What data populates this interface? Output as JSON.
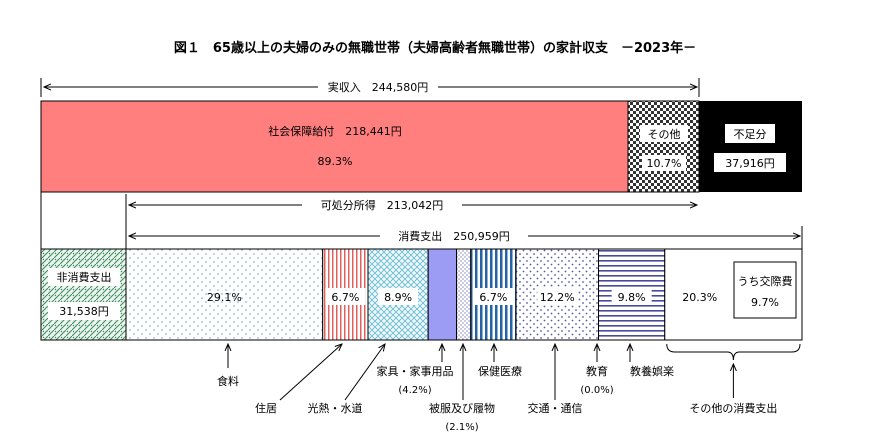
{
  "title": "図１　65歳以上の夫婦のみの無職世帯（夫婦高齢者無職世帯）の家計収支　－2023年－",
  "chart_data": {
    "type": "bar",
    "unit": "円",
    "income": {
      "label": "実収入",
      "amount_text": "244,580円",
      "value": 244580,
      "segments": [
        {
          "name": "社会保障給付",
          "amount_text": "218,441円",
          "value": 218441,
          "pct_text": "89.3%",
          "color": "#FF7F7F",
          "pattern": "solid"
        },
        {
          "name": "その他",
          "pct_text": "10.7%",
          "pattern": "checker"
        }
      ]
    },
    "shortfall": {
      "label": "不足分",
      "amount_text": "37,916円",
      "value": 37916,
      "color": "#000000"
    },
    "disposable_income": {
      "label": "可処分所得",
      "amount_text": "213,042円",
      "value": 213042
    },
    "non_consumption": {
      "label": "非消費支出",
      "amount_text": "31,538円",
      "value": 31538
    },
    "consumption": {
      "label": "消費支出",
      "amount_text": "250,959円",
      "value": 250959,
      "categories": [
        {
          "name": "食料",
          "pct": 29.1,
          "pct_text": "29.1%",
          "pattern": "dots-blue"
        },
        {
          "name": "住居",
          "pct": 6.7,
          "pct_text": "6.7%",
          "pattern": "vlines-red"
        },
        {
          "name": "光熱・水道",
          "pct": 8.9,
          "pct_text": "8.9%",
          "pattern": "cross-teal"
        },
        {
          "name": "家具・家事用品",
          "pct": 4.2,
          "pct_text": "(4.2%)",
          "pattern": "solid-violet"
        },
        {
          "name": "被服及び履物",
          "pct": 2.1,
          "pct_text": "(2.1%)",
          "pattern": "dots-fine"
        },
        {
          "name": "保健医療",
          "pct": 6.7,
          "pct_text": "6.7%",
          "pattern": "vlines-navy"
        },
        {
          "name": "交通・通信",
          "pct": 12.2,
          "pct_text": "12.2%",
          "pattern": "dots-navy"
        },
        {
          "name": "教育",
          "pct": 0.0,
          "pct_text": "(0.0%)",
          "pattern": "none"
        },
        {
          "name": "教養娯楽",
          "pct": 9.8,
          "pct_text": "9.8%",
          "pattern": "hlines-navy"
        },
        {
          "name": "その他の消費支出",
          "pct": 20.3,
          "pct_text": "20.3%",
          "pattern": "none",
          "sub": {
            "name": "うち交際費",
            "pct": 9.7,
            "pct_text": "9.7%"
          }
        }
      ]
    }
  }
}
